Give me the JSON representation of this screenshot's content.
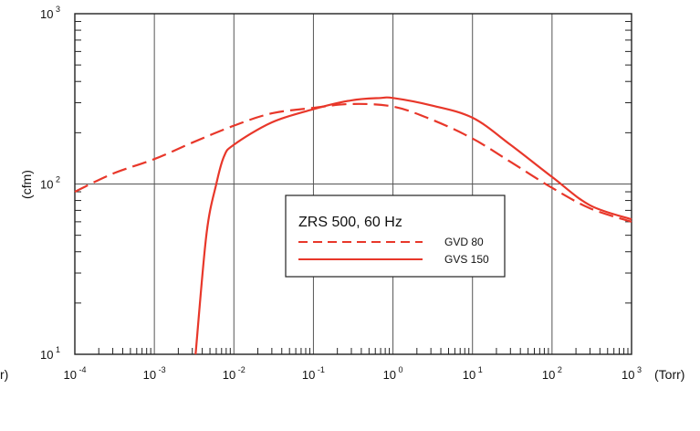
{
  "chart_data": {
    "type": "line",
    "title": "",
    "xlabel": "(Torr)",
    "ylabel": "(cfm)",
    "x_scale": "log",
    "y_scale": "log",
    "xlim": [
      0.0001,
      1000
    ],
    "ylim": [
      10,
      1000
    ],
    "grid": true,
    "x_ticks": [
      {
        "base": "10",
        "exp": "-4"
      },
      {
        "base": "10",
        "exp": "-3"
      },
      {
        "base": "10",
        "exp": "-2"
      },
      {
        "base": "10",
        "exp": "-1"
      },
      {
        "base": "10",
        "exp": "0"
      },
      {
        "base": "10",
        "exp": "1"
      },
      {
        "base": "10",
        "exp": "2"
      },
      {
        "base": "10",
        "exp": "3"
      }
    ],
    "y_ticks": [
      {
        "base": "10",
        "exp": "1"
      },
      {
        "base": "10",
        "exp": "2"
      },
      {
        "base": "10",
        "exp": "3"
      }
    ],
    "left_cut_label": "r)",
    "legend": {
      "title": "ZRS 500, 60 Hz",
      "position": "center"
    },
    "series": [
      {
        "name": "GVD 80",
        "style": "dashed",
        "color": "#e8372a",
        "points": [
          [
            0.0001,
            90
          ],
          [
            0.0003,
            115
          ],
          [
            0.001,
            140
          ],
          [
            0.003,
            175
          ],
          [
            0.01,
            220
          ],
          [
            0.03,
            260
          ],
          [
            0.1,
            280
          ],
          [
            0.3,
            295
          ],
          [
            1,
            285
          ],
          [
            3,
            240
          ],
          [
            10,
            185
          ],
          [
            30,
            135
          ],
          [
            100,
            95
          ],
          [
            300,
            72
          ],
          [
            1000,
            60
          ]
        ]
      },
      {
        "name": "GVS 150",
        "style": "solid",
        "color": "#e8372a",
        "points": [
          [
            0.0033,
            10
          ],
          [
            0.0045,
            50
          ],
          [
            0.006,
            100
          ],
          [
            0.0075,
            145
          ],
          [
            0.01,
            170
          ],
          [
            0.03,
            230
          ],
          [
            0.1,
            275
          ],
          [
            0.3,
            310
          ],
          [
            0.7,
            320
          ],
          [
            1,
            320
          ],
          [
            3,
            290
          ],
          [
            10,
            245
          ],
          [
            30,
            170
          ],
          [
            100,
            110
          ],
          [
            300,
            75
          ],
          [
            1000,
            62
          ]
        ]
      }
    ]
  }
}
